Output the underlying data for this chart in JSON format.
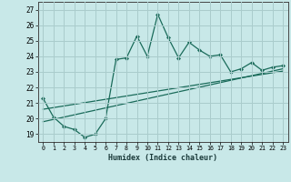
{
  "title": "",
  "xlabel": "Humidex (Indice chaleur)",
  "xlim": [
    -0.5,
    23.5
  ],
  "ylim": [
    18.5,
    27.5
  ],
  "xticks": [
    0,
    1,
    2,
    3,
    4,
    5,
    6,
    7,
    8,
    9,
    10,
    11,
    12,
    13,
    14,
    15,
    16,
    17,
    18,
    19,
    20,
    21,
    22,
    23
  ],
  "yticks": [
    19,
    20,
    21,
    22,
    23,
    24,
    25,
    26,
    27
  ],
  "bg_color": "#c8e8e8",
  "grid_color": "#aacccc",
  "line_color": "#1a6b5a",
  "data_x": [
    0,
    1,
    2,
    3,
    4,
    5,
    6,
    7,
    8,
    9,
    10,
    11,
    12,
    13,
    14,
    15,
    16,
    17,
    18,
    19,
    20,
    21,
    22,
    23
  ],
  "data_y": [
    21.3,
    20.1,
    19.5,
    19.3,
    18.8,
    19.0,
    20.0,
    23.8,
    23.9,
    25.3,
    24.0,
    26.7,
    25.2,
    23.9,
    24.9,
    24.4,
    24.0,
    24.1,
    23.0,
    23.2,
    23.6,
    23.1,
    23.3,
    23.4
  ],
  "trend1_x": [
    0,
    23
  ],
  "trend1_y": [
    19.8,
    23.2
  ],
  "trend2_x": [
    0,
    23
  ],
  "trend2_y": [
    20.6,
    23.05
  ]
}
